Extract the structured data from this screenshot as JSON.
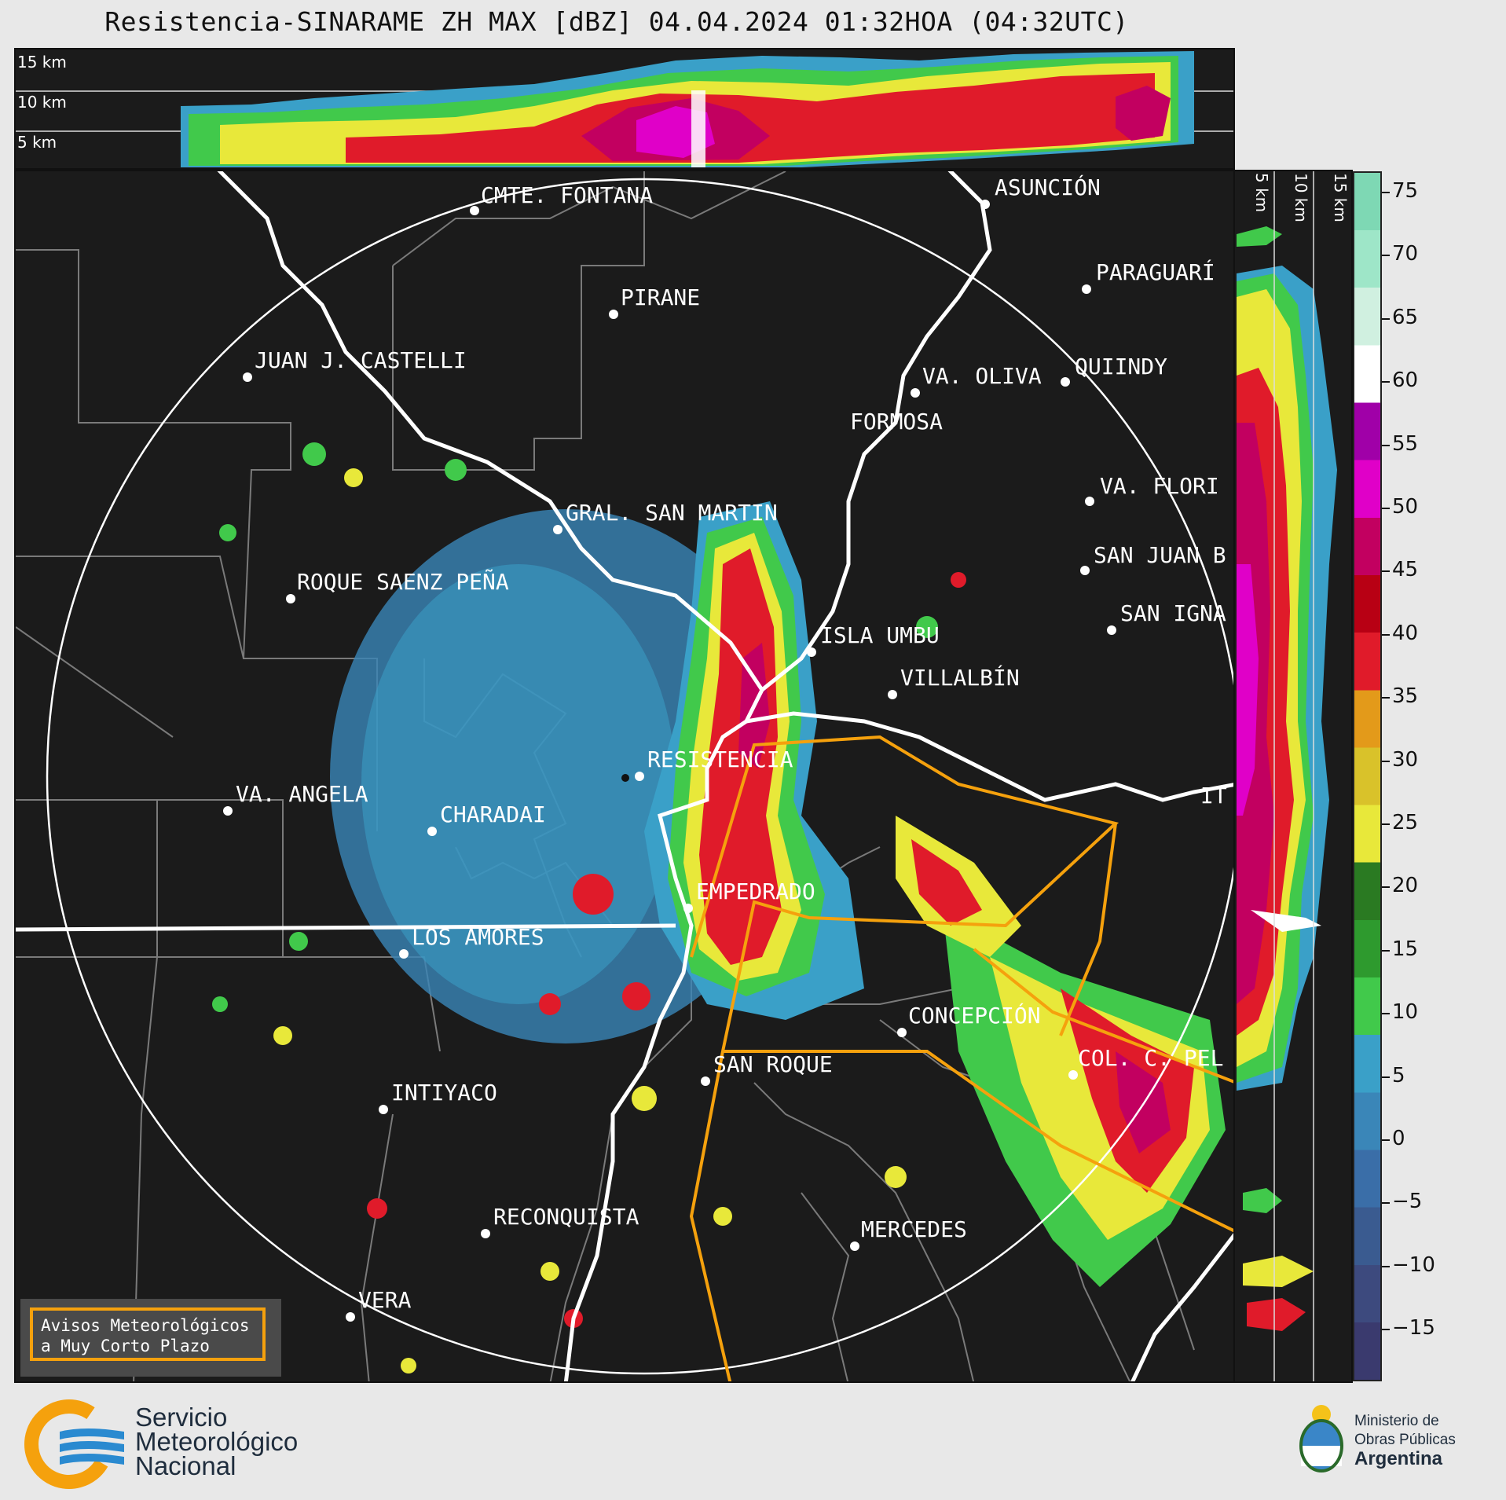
{
  "title": "Resistencia-SINARAME ZH MAX [dBZ] 04.04.2024 01:32HOA (04:32UTC)",
  "top_panel": {
    "height_labels": [
      "15 km",
      "10 km",
      "5 km"
    ]
  },
  "side_panel": {
    "height_labels": [
      "5 km",
      "10 km",
      "15 km"
    ]
  },
  "colorbar": {
    "unit": "dBZ",
    "ticks": [
      "75",
      "70",
      "65",
      "60",
      "55",
      "50",
      "45",
      "40",
      "35",
      "30",
      "25",
      "20",
      "15",
      "10",
      "5",
      "0",
      "−5",
      "−10",
      "−15"
    ],
    "colors": [
      "#3a3a6e",
      "#3d4a7e",
      "#3a5b90",
      "#3a6ea8",
      "#3a86b8",
      "#3aa0c8",
      "#41c94b",
      "#2e9a2e",
      "#2a7a22",
      "#e8e83a",
      "#d9c22a",
      "#e39a1a",
      "#e01b2a",
      "#b80014",
      "#c20060",
      "#e000c8",
      "#a000a8",
      "#ffffff",
      "#d0f0e0",
      "#9ee6c8",
      "#7ed8b4"
    ]
  },
  "cities": [
    {
      "name": "CMTE. FONTANA"
    },
    {
      "name": "ASUNCIÓN"
    },
    {
      "name": "PARAGUARÍ"
    },
    {
      "name": "PIRANE"
    },
    {
      "name": "JUAN J. CASTELLI"
    },
    {
      "name": "VA. OLIVA"
    },
    {
      "name": "QUIINDY"
    },
    {
      "name": "FORMOSA"
    },
    {
      "name": "VA. FLORI"
    },
    {
      "name": "GRAL. SAN MARTIN"
    },
    {
      "name": "SAN JUAN B"
    },
    {
      "name": "ROQUE SAENZ PEÑA"
    },
    {
      "name": "SAN IGNA"
    },
    {
      "name": "ISLA UMBU"
    },
    {
      "name": "VILLALBÍN"
    },
    {
      "name": "RESISTENCIA"
    },
    {
      "name": "VA. ANGELA"
    },
    {
      "name": "CHARADAI"
    },
    {
      "name": "IT"
    },
    {
      "name": "EMPEDRADO"
    },
    {
      "name": "LOS AMORES"
    },
    {
      "name": "CONCEPCIÓN"
    },
    {
      "name": "COL. C. PEL"
    },
    {
      "name": "SAN ROQUE"
    },
    {
      "name": "INTIYACO"
    },
    {
      "name": "RECONQUISTA"
    },
    {
      "name": "MERCEDES"
    },
    {
      "name": "VERA"
    }
  ],
  "avisos": {
    "line1": "Avisos Meteorológicos",
    "line2": "a Muy Corto Plazo"
  },
  "smn_logo": {
    "line1": "Servicio",
    "line2": "Meteorológico",
    "line3": "Nacional"
  },
  "ministry_logo": {
    "line1": "Ministerio de",
    "line2": "Obras Públicas",
    "line3": "Argentina"
  }
}
